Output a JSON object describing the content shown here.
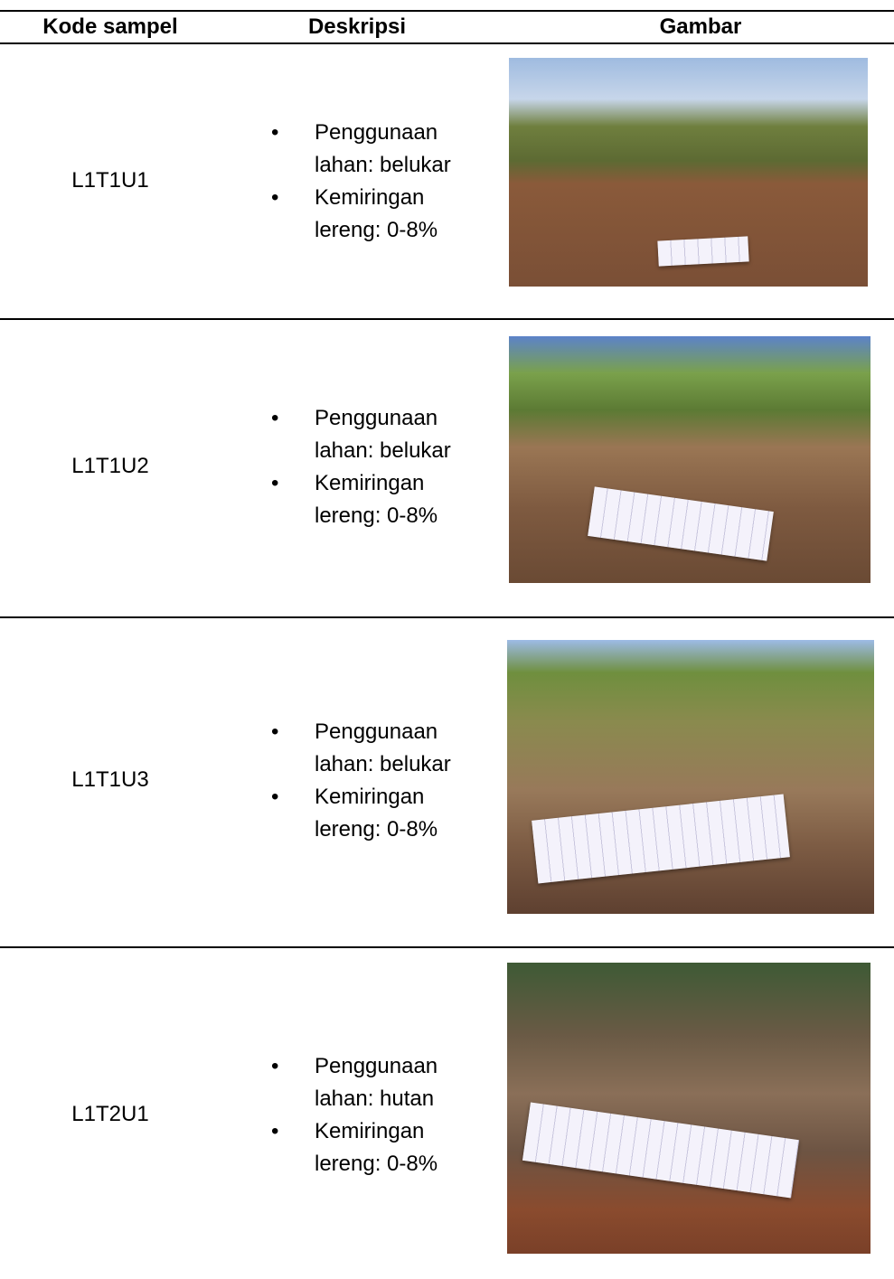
{
  "table": {
    "headers": [
      "Kode sampel",
      "Deskripsi",
      "Gambar"
    ],
    "rows": [
      {
        "code": "L1T1U1",
        "description": [
          "Penggunaan lahan: belukar",
          "Kemiringan lereng: 0-8%"
        ]
      },
      {
        "code": "L1T1U2",
        "description": [
          "Penggunaan lahan: belukar",
          "Kemiringan lereng: 0-8%"
        ]
      },
      {
        "code": "L1T1U3",
        "description": [
          "Penggunaan lahan: belukar",
          "Kemiringan lereng: 0-8%"
        ]
      },
      {
        "code": "L1T2U1",
        "description": [
          "Penggunaan lahan: hutan",
          "Kemiringan lereng: 0-8%"
        ]
      }
    ]
  }
}
